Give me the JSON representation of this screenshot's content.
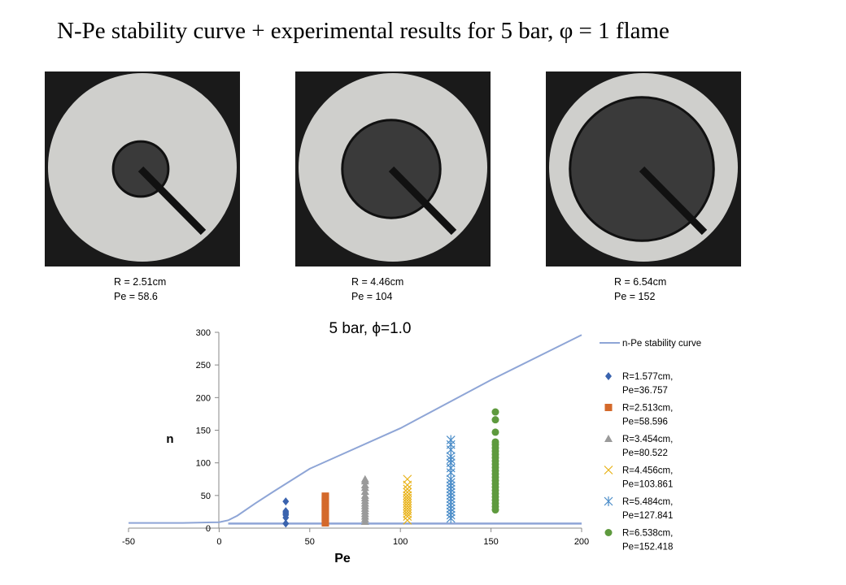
{
  "title": "N-Pe stability curve + experimental results for 5 bar, φ = 1 flame",
  "photos": [
    {
      "caption_r": "R = 2.51cm",
      "caption_pe": "Pe = 58.6",
      "flame_radius_cm": 2.51
    },
    {
      "caption_r": "R = 4.46cm",
      "caption_pe": "Pe = 104",
      "flame_radius_cm": 4.46
    },
    {
      "caption_r": "R = 6.54cm",
      "caption_pe": "Pe = 152",
      "flame_radius_cm": 6.54
    }
  ],
  "chart_data": {
    "type": "scatter",
    "title": "5 bar, ϕ=1.0",
    "xlabel": "Pe",
    "ylabel": "n",
    "xlim": [
      -50,
      200
    ],
    "ylim": [
      0,
      300
    ],
    "xticks": [
      "-50",
      "0",
      "50",
      "100",
      "150",
      "200"
    ],
    "yticks": [
      "0",
      "50",
      "100",
      "150",
      "200",
      "250",
      "300"
    ],
    "grid": false,
    "legend_position": "right",
    "curve": {
      "name": "n-Pe stability curve",
      "color": "#8EA5D6",
      "upper": [
        [
          -50,
          8
        ],
        [
          -20,
          8
        ],
        [
          0,
          9
        ],
        [
          5,
          12
        ],
        [
          10,
          19
        ],
        [
          20,
          38
        ],
        [
          30,
          56
        ],
        [
          50,
          91
        ],
        [
          100,
          153
        ],
        [
          150,
          227
        ],
        [
          200,
          296
        ]
      ],
      "lower": [
        [
          5,
          7
        ],
        [
          200,
          7
        ]
      ]
    },
    "series": [
      {
        "name": "R=1.577cm,",
        "name2": "Pe=36.757",
        "marker": "diamond",
        "color": "#3A63AE",
        "x": 36.757,
        "y": [
          41,
          26,
          24,
          22,
          20,
          16,
          7
        ]
      },
      {
        "name": "R=2.513cm,",
        "name2": "Pe=58.596",
        "marker": "square",
        "color": "#D4692A",
        "x": 58.596,
        "y": [
          8,
          11,
          14,
          17,
          20,
          23,
          26,
          29,
          32,
          35,
          38,
          41,
          44,
          47,
          49
        ]
      },
      {
        "name": "R=3.454cm,",
        "name2": "Pe=80.522",
        "marker": "triangle",
        "color": "#9A9A9A",
        "x": 80.522,
        "y": [
          10,
          14,
          18,
          22,
          26,
          30,
          34,
          38,
          42,
          46,
          50,
          56,
          62,
          66,
          72,
          75
        ]
      },
      {
        "name": "R=4.456cm,",
        "name2": "Pe=103.861",
        "marker": "x",
        "color": "#E8B116",
        "x": 103.861,
        "y": [
          12,
          18,
          22,
          26,
          30,
          34,
          38,
          42,
          46,
          50,
          55,
          60,
          66,
          75
        ]
      },
      {
        "name": "R=5.484cm,",
        "name2": "Pe=127.841",
        "marker": "star",
        "color": "#4A8CC8",
        "x": 127.841,
        "y": [
          15,
          20,
          25,
          30,
          35,
          40,
          45,
          50,
          55,
          60,
          65,
          70,
          75,
          85,
          92,
          100,
          105,
          110,
          120,
          128,
          135
        ]
      },
      {
        "name": "R=6.538cm,",
        "name2": "Pe=152.418",
        "marker": "circle",
        "color": "#5E9A3E",
        "x": 152.418,
        "y": [
          28,
          33,
          38,
          43,
          48,
          53,
          58,
          63,
          68,
          73,
          78,
          83,
          88,
          93,
          98,
          103,
          108,
          113,
          118,
          123,
          128,
          132,
          147,
          166,
          178
        ]
      }
    ]
  }
}
